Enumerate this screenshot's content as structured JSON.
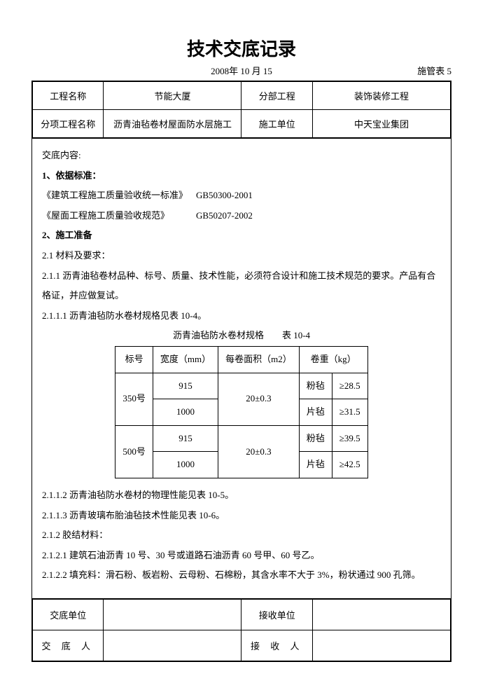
{
  "doc": {
    "title": "技术交底记录",
    "date": "2008年 10 月 15",
    "form_no": "施管表 5"
  },
  "header": {
    "r1c1": "工程名称",
    "r1c2": "节能大厦",
    "r1c3": "分部工程",
    "r1c4": "装饰装修工程",
    "r2c1": "分项工程名称",
    "r2c2": "沥青油毡卷材屋面防水层施工",
    "r2c3": "施工单位",
    "r2c4": "中天宝业集团"
  },
  "content": {
    "heading": "交底内容:",
    "s1_title": "1、依据标准：",
    "std1_name": "《建筑工程施工质量验收统一标准》",
    "std1_code": "GB50300-2001",
    "std2_name": "《屋面工程施工质量验收规范》",
    "std2_code": "GB50207-2002",
    "s2_title": "2、施工准备",
    "p21": "2.1 材料及要求：",
    "p211": "2.1.1 沥青油毡卷材品种、标号、质量、技术性能，必须符合设计和施工技术规范的要求。产品有合格证，并应做复试。",
    "p2111": "2.1.1.1 沥青油毡防水卷材规格见表 10-4。",
    "p2112": "2.1.1.2 沥青油毡防水卷材的物理性能见表 10-5。",
    "p2113": "2.1.1.3 沥青玻璃布胎油毡技术性能见表 10-6。",
    "p212": "2.1.2 胶结材料：",
    "p2121": "2.1.2.1 建筑石油沥青 10 号、30 号或道路石油沥青 60 号甲、60 号乙。",
    "p2122": "2.1.2.2 填充料：滑石粉、板岩粉、云母粉、石棉粉，其含水率不大于 3%，粉状通过 900 孔筛。"
  },
  "spec": {
    "caption": "沥青油毡防水卷材规格　　表 10-4",
    "h1": "标号",
    "h2": "宽度（mm）",
    "h3": "每卷面积（m2）",
    "h4": "卷重（kg）",
    "rows": [
      {
        "label": "350号",
        "w1": "915",
        "w2": "1000",
        "area": "20±0.3",
        "t1": "粉毡",
        "v1": "≥28.5",
        "t2": "片毡",
        "v2": "≥31.5"
      },
      {
        "label": "500号",
        "w1": "915",
        "w2": "1000",
        "area": "20±0.3",
        "t1": "粉毡",
        "v1": "≥39.5",
        "t2": "片毡",
        "v2": "≥42.5"
      }
    ]
  },
  "footer": {
    "r1c1": "交底单位",
    "r1c3": "接收单位",
    "r2c1": "交 底 人",
    "r2c3": "接 收 人"
  }
}
